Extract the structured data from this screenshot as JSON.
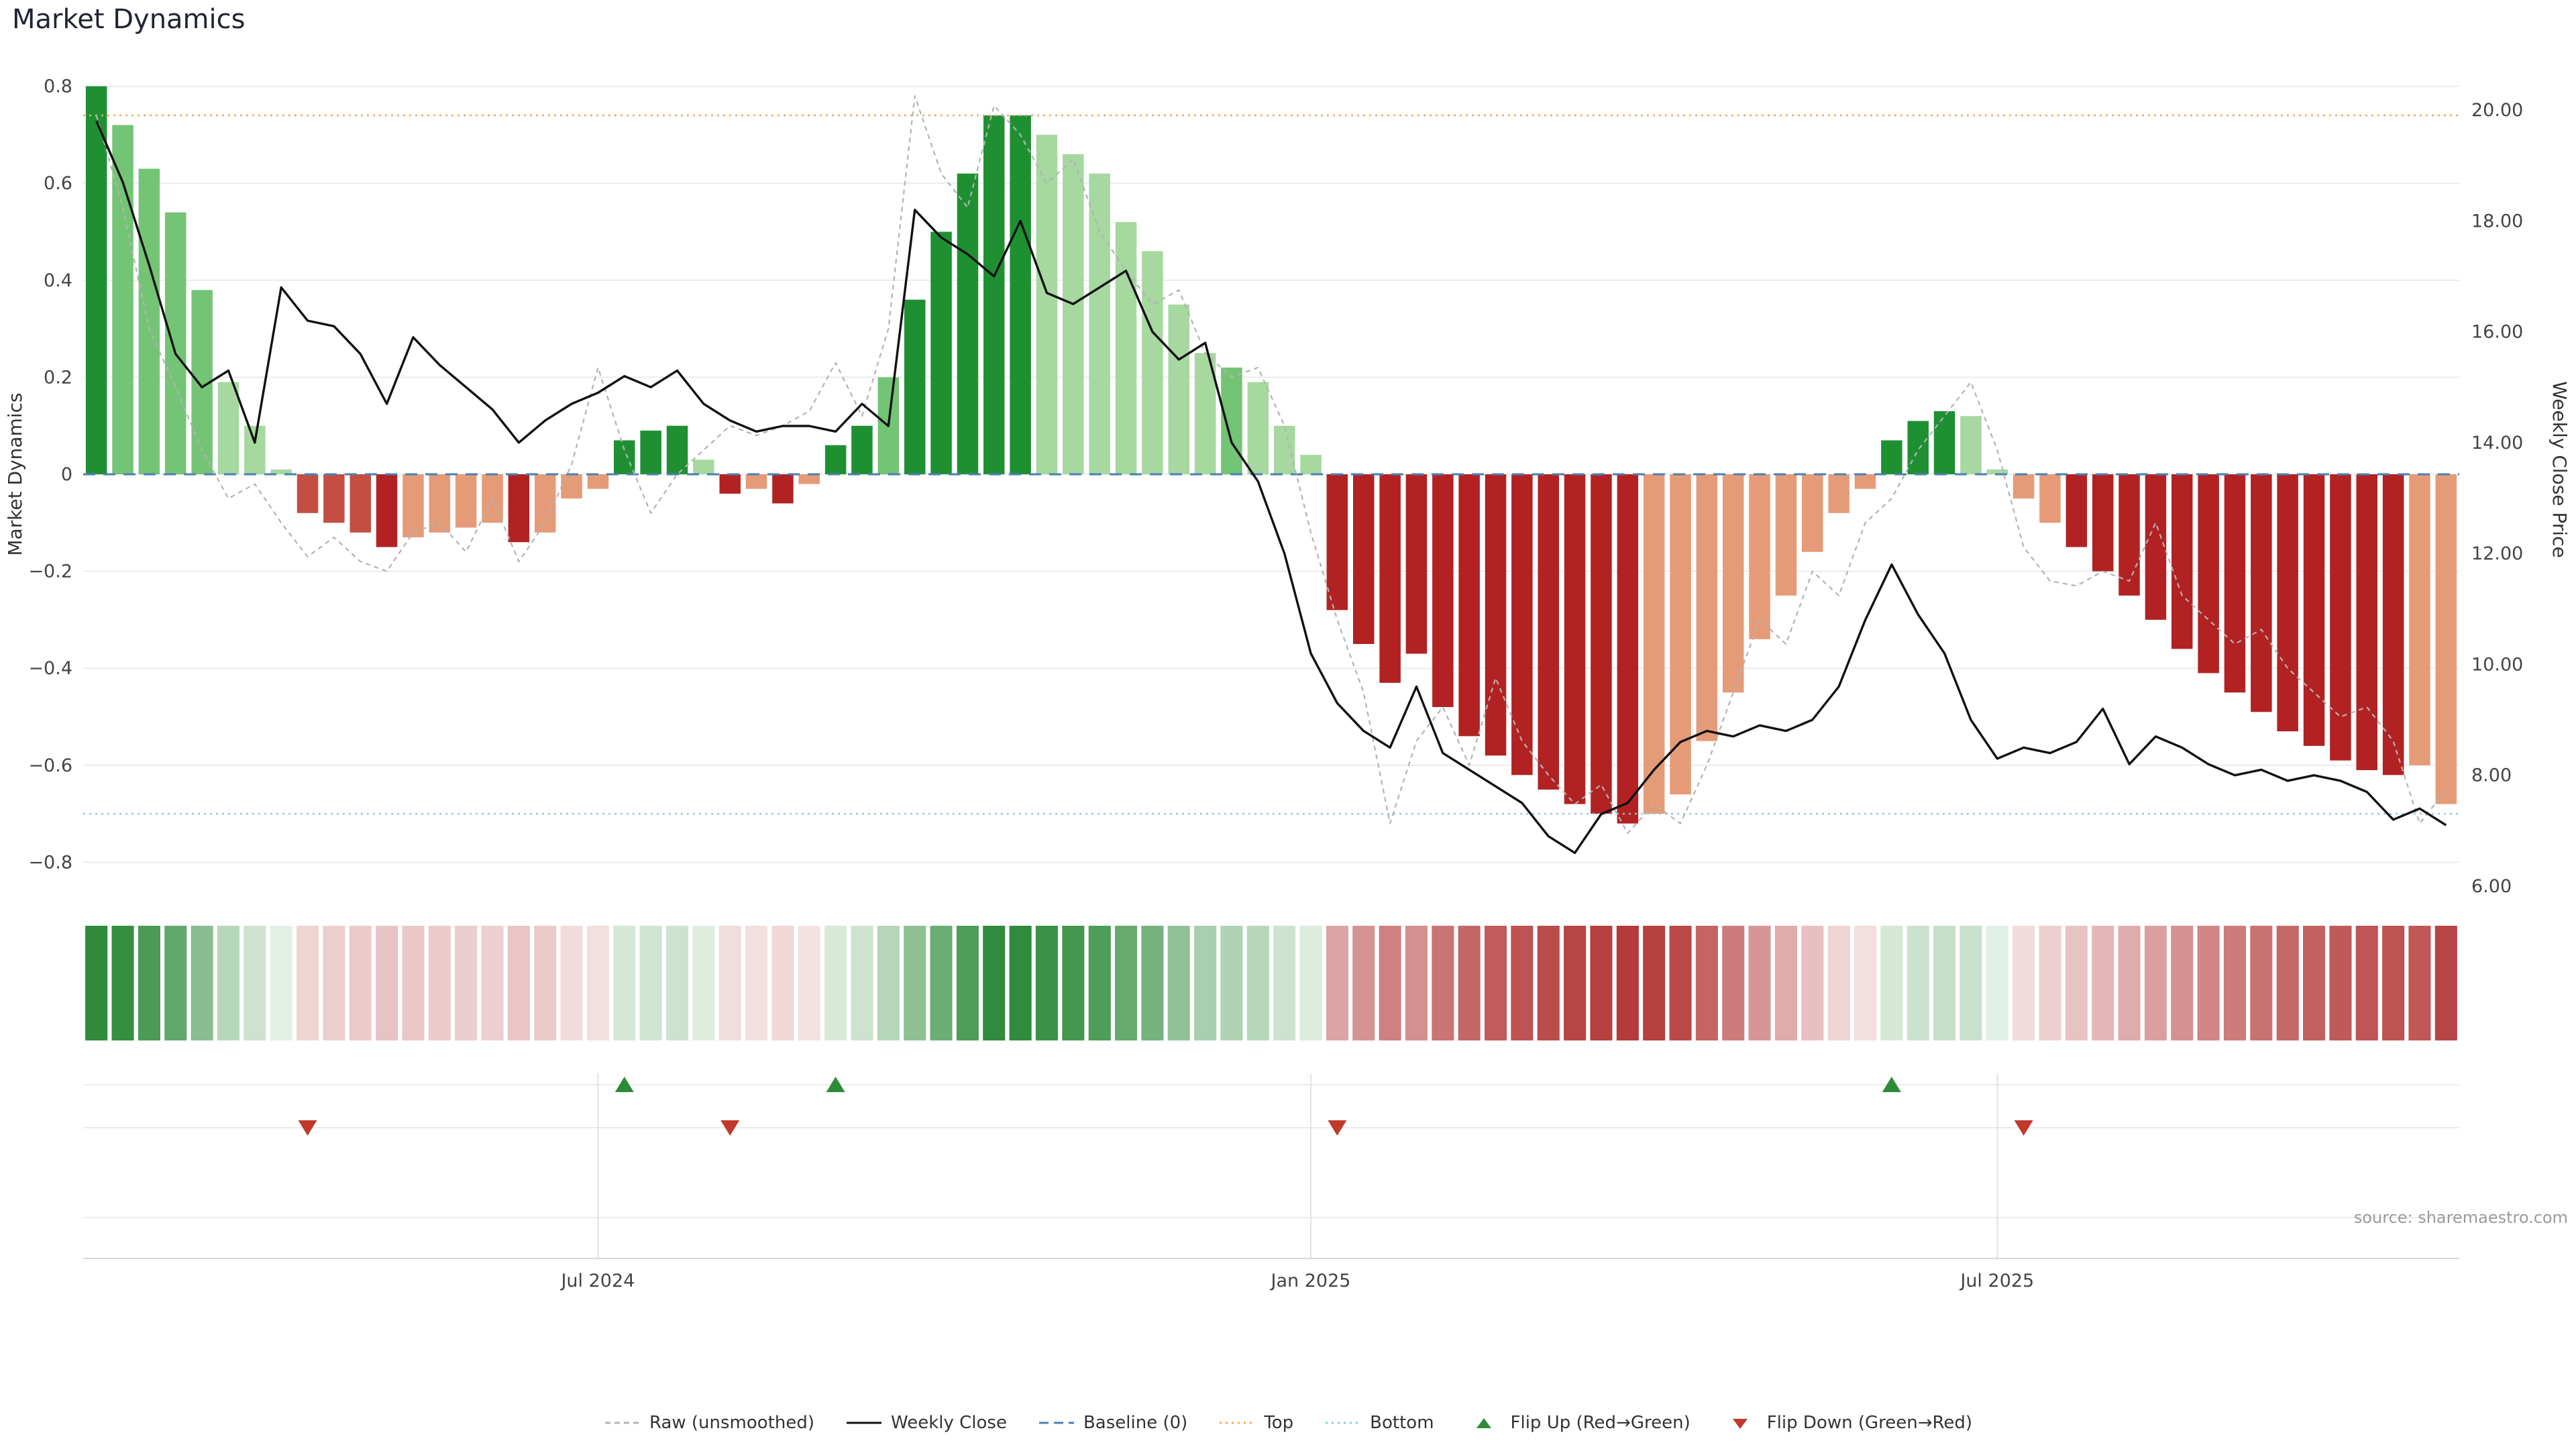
{
  "title": "Market Dynamics",
  "chart_data": {
    "type": "bar",
    "title": "Market Dynamics",
    "ylabel_left": "Market Dynamics",
    "ylabel_right": "Weekly Close Price",
    "ylim_left": [
      -0.88,
      0.84
    ],
    "ylim_right": [
      5.8,
      20.3
    ],
    "yticks_left": {
      "labels": [
        "0.8",
        "0.6",
        "0.4",
        "0.2",
        "0",
        "−0.2",
        "−0.4",
        "−0.6",
        "−0.8"
      ],
      "values": [
        0.8,
        0.6,
        0.4,
        0.2,
        0,
        -0.2,
        -0.4,
        -0.6,
        -0.8
      ]
    },
    "yticks_right": {
      "labels": [
        "20.00",
        "18.00",
        "16.00",
        "14.00",
        "12.00",
        "10.00",
        "8.00",
        "6.00"
      ],
      "values": [
        20,
        18,
        16,
        14,
        12,
        10,
        8,
        6
      ]
    },
    "xticks": [
      {
        "label": "Jul 2024",
        "index": 19
      },
      {
        "label": "Jan 2025",
        "index": 46
      },
      {
        "label": "Jul 2025",
        "index": 72
      }
    ],
    "n_weeks": 90,
    "baseline": 0,
    "top_threshold": 0.74,
    "bottom_threshold": -0.7,
    "bars": {
      "values": [
        0.8,
        0.72,
        0.63,
        0.54,
        0.38,
        0.19,
        0.1,
        0.01,
        -0.08,
        -0.1,
        -0.12,
        -0.15,
        -0.13,
        -0.12,
        -0.11,
        -0.1,
        -0.14,
        -0.12,
        -0.05,
        -0.03,
        0.07,
        0.09,
        0.1,
        0.03,
        -0.04,
        -0.03,
        -0.06,
        -0.02,
        0.06,
        0.1,
        0.2,
        0.36,
        0.5,
        0.62,
        0.74,
        0.74,
        0.7,
        0.66,
        0.62,
        0.52,
        0.46,
        0.35,
        0.25,
        0.22,
        0.19,
        0.1,
        0.04,
        -0.28,
        -0.35,
        -0.43,
        -0.37,
        -0.48,
        -0.54,
        -0.58,
        -0.62,
        -0.65,
        -0.68,
        -0.7,
        -0.72,
        -0.7,
        -0.66,
        -0.55,
        -0.45,
        -0.34,
        -0.25,
        -0.16,
        -0.08,
        -0.03,
        0.07,
        0.11,
        0.13,
        0.12,
        0.01,
        -0.05,
        -0.1,
        -0.15,
        -0.2,
        -0.25,
        -0.3,
        -0.36,
        -0.41,
        -0.45,
        -0.49,
        -0.53,
        -0.56,
        -0.59,
        -0.61,
        -0.62,
        -0.6,
        -0.68
      ],
      "colors": [
        "dg",
        "mg",
        "mg",
        "mg",
        "mg",
        "lg",
        "lg",
        "lg",
        "mr",
        "mr",
        "mr",
        "dr",
        "sr",
        "sr",
        "sr",
        "sr",
        "dr",
        "sr",
        "sr",
        "sr",
        "dg",
        "dg",
        "dg",
        "lg",
        "dr",
        "sr",
        "dr",
        "sr",
        "dg",
        "dg",
        "mg",
        "dg",
        "dg",
        "dg",
        "dg",
        "dg",
        "lg",
        "lg",
        "lg",
        "lg",
        "lg",
        "lg",
        "lg",
        "mg",
        "lg",
        "lg",
        "lg",
        "dr",
        "dr",
        "dr",
        "dr",
        "dr",
        "dr",
        "dr",
        "dr",
        "dr",
        "dr",
        "dr",
        "dr",
        "sr",
        "sr",
        "sr",
        "sr",
        "sr",
        "sr",
        "sr",
        "sr",
        "sr",
        "dg",
        "dg",
        "dg",
        "lg",
        "lg",
        "sr",
        "sr",
        "dr",
        "dr",
        "dr",
        "dr",
        "dr",
        "dr",
        "dr",
        "dr",
        "dr",
        "dr",
        "dr",
        "dr",
        "dr",
        "sr",
        "sr"
      ]
    },
    "palette": {
      "dg": "#1f9032",
      "mg": "#74c476",
      "lg": "#a6d8a0",
      "mr": "#c44e42",
      "dr": "#b22222",
      "sr": "#e59b77"
    },
    "series": [
      {
        "name": "Raw (unsmoothed)",
        "type": "line",
        "style": "dashed",
        "color": "#b3b3b3",
        "axis": "left",
        "values": [
          0.74,
          0.55,
          0.3,
          0.18,
          0.05,
          -0.05,
          -0.02,
          -0.1,
          -0.17,
          -0.13,
          -0.18,
          -0.2,
          -0.12,
          -0.1,
          -0.16,
          -0.05,
          -0.18,
          -0.1,
          0.02,
          0.22,
          0.05,
          -0.08,
          0.0,
          0.05,
          0.1,
          0.08,
          0.1,
          0.13,
          0.23,
          0.12,
          0.3,
          0.78,
          0.62,
          0.55,
          0.76,
          0.7,
          0.6,
          0.65,
          0.5,
          0.42,
          0.35,
          0.38,
          0.25,
          0.2,
          0.22,
          0.1,
          -0.12,
          -0.3,
          -0.45,
          -0.72,
          -0.55,
          -0.48,
          -0.6,
          -0.42,
          -0.55,
          -0.62,
          -0.68,
          -0.64,
          -0.74,
          -0.68,
          -0.72,
          -0.6,
          -0.45,
          -0.3,
          -0.35,
          -0.2,
          -0.25,
          -0.1,
          -0.05,
          0.05,
          0.12,
          0.19,
          0.05,
          -0.15,
          -0.22,
          -0.23,
          -0.2,
          -0.22,
          -0.1,
          -0.25,
          -0.3,
          -0.35,
          -0.32,
          -0.4,
          -0.45,
          -0.5,
          -0.48,
          -0.55,
          -0.72,
          -0.65
        ]
      },
      {
        "name": "Weekly Close",
        "type": "line",
        "style": "solid",
        "color": "#111111",
        "axis": "right",
        "values": [
          19.8,
          18.7,
          17.2,
          15.6,
          15.0,
          15.3,
          14.0,
          16.8,
          16.2,
          16.1,
          15.6,
          14.7,
          15.9,
          15.4,
          15.0,
          14.6,
          14.0,
          14.4,
          14.7,
          14.9,
          15.2,
          15.0,
          15.3,
          14.7,
          14.4,
          14.2,
          14.3,
          14.3,
          14.2,
          14.7,
          14.3,
          18.2,
          17.7,
          17.4,
          17.0,
          18.0,
          16.7,
          16.5,
          16.8,
          17.1,
          16.0,
          15.5,
          15.8,
          14.0,
          13.3,
          12.0,
          10.2,
          9.3,
          8.8,
          8.5,
          9.6,
          8.4,
          8.1,
          7.8,
          7.5,
          6.9,
          6.6,
          7.3,
          7.5,
          8.1,
          8.6,
          8.8,
          8.7,
          8.9,
          8.8,
          9.0,
          9.6,
          10.8,
          11.8,
          10.9,
          10.2,
          9.0,
          8.3,
          8.5,
          8.4,
          8.6,
          9.2,
          8.2,
          8.7,
          8.5,
          8.2,
          8.0,
          8.1,
          7.9,
          8.0,
          7.9,
          7.7,
          7.2,
          7.4,
          7.1
        ]
      }
    ],
    "flips": {
      "up_indices": [
        20,
        28,
        68
      ],
      "down_indices": [
        8,
        24,
        47,
        73
      ]
    },
    "heatmap": {
      "pos_base": "#2e8b3a",
      "neg_base": "#b23434",
      "min_intensity": 0.12,
      "full_at": 0.75
    },
    "source": "source: sharemaestro.com",
    "legend_position": "bottom center",
    "grid": "horizontal",
    "legend": [
      {
        "label": "Raw (unsmoothed)",
        "swatch": "dashed",
        "color": "#b3b3b3"
      },
      {
        "label": "Weekly Close",
        "swatch": "solid",
        "color": "#111111"
      },
      {
        "label": "Baseline (0)",
        "swatch": "longdash",
        "color": "#4a7fb5"
      },
      {
        "label": "Top",
        "swatch": "dotted",
        "color": "#f0a858"
      },
      {
        "label": "Bottom",
        "swatch": "dotted",
        "color": "#8cc8d8"
      },
      {
        "label": "Flip Up (Red→Green)",
        "swatch": "triangle-up",
        "color": "#2e8b3a"
      },
      {
        "label": "Flip Down (Green→Red)",
        "swatch": "triangle-down",
        "color": "#c0392b"
      }
    ]
  }
}
